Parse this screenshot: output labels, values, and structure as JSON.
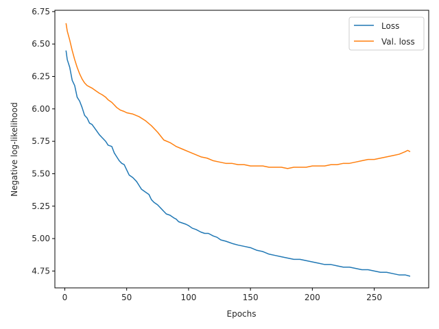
{
  "chart_data": {
    "type": "line",
    "title": "",
    "xlabel": "Epochs",
    "ylabel": "Negative log-likelihood",
    "xlim": [
      -8,
      294
    ],
    "ylim": [
      4.62,
      6.76
    ],
    "xticks": [
      0,
      50,
      100,
      150,
      200,
      250
    ],
    "yticks": [
      4.75,
      5.0,
      5.25,
      5.5,
      5.75,
      6.0,
      6.25,
      6.5,
      6.75
    ],
    "xtick_labels": [
      "0",
      "50",
      "100",
      "150",
      "200",
      "250"
    ],
    "ytick_labels": [
      "4.75",
      "5.00",
      "5.25",
      "5.50",
      "5.75",
      "6.00",
      "6.25",
      "6.50",
      "6.75"
    ],
    "grid": false,
    "legend": "top-right",
    "colors": {
      "Loss": "#1f77b4",
      "Val. loss": "#ff7f0e"
    },
    "series": [
      {
        "name": "Loss",
        "x": [
          1,
          2,
          4,
          6,
          8,
          10,
          12,
          14,
          16,
          18,
          20,
          22,
          25,
          28,
          30,
          33,
          35,
          38,
          40,
          42,
          44,
          46,
          48,
          50,
          52,
          55,
          58,
          60,
          62,
          65,
          68,
          70,
          72,
          75,
          78,
          80,
          82,
          85,
          88,
          90,
          92,
          95,
          98,
          100,
          103,
          106,
          110,
          113,
          116,
          120,
          123,
          126,
          130,
          133,
          136,
          140,
          145,
          150,
          155,
          160,
          165,
          170,
          175,
          180,
          185,
          190,
          195,
          200,
          205,
          210,
          215,
          220,
          225,
          230,
          235,
          240,
          245,
          250,
          255,
          260,
          265,
          270,
          275,
          279
        ],
        "y": [
          6.45,
          6.38,
          6.32,
          6.22,
          6.18,
          6.09,
          6.06,
          6.01,
          5.95,
          5.93,
          5.89,
          5.88,
          5.84,
          5.8,
          5.78,
          5.75,
          5.72,
          5.71,
          5.66,
          5.63,
          5.6,
          5.58,
          5.57,
          5.53,
          5.49,
          5.47,
          5.44,
          5.41,
          5.38,
          5.36,
          5.34,
          5.3,
          5.28,
          5.26,
          5.23,
          5.21,
          5.19,
          5.18,
          5.16,
          5.15,
          5.13,
          5.12,
          5.11,
          5.1,
          5.08,
          5.07,
          5.05,
          5.04,
          5.04,
          5.02,
          5.01,
          4.99,
          4.98,
          4.97,
          4.96,
          4.95,
          4.94,
          4.93,
          4.91,
          4.9,
          4.88,
          4.87,
          4.86,
          4.85,
          4.84,
          4.84,
          4.83,
          4.82,
          4.81,
          4.8,
          4.8,
          4.79,
          4.78,
          4.78,
          4.77,
          4.76,
          4.76,
          4.75,
          4.74,
          4.74,
          4.73,
          4.72,
          4.72,
          4.71
        ]
      },
      {
        "name": "Val. loss",
        "x": [
          1,
          2,
          4,
          6,
          8,
          10,
          12,
          14,
          16,
          18,
          20,
          22,
          25,
          28,
          30,
          33,
          35,
          38,
          40,
          42,
          45,
          48,
          50,
          55,
          60,
          65,
          70,
          75,
          80,
          85,
          90,
          95,
          100,
          105,
          110,
          115,
          120,
          125,
          130,
          135,
          140,
          145,
          150,
          155,
          160,
          165,
          170,
          175,
          180,
          185,
          190,
          195,
          200,
          205,
          210,
          215,
          220,
          225,
          230,
          235,
          240,
          245,
          250,
          255,
          260,
          265,
          270,
          275,
          277,
          279
        ],
        "y": [
          6.66,
          6.6,
          6.53,
          6.45,
          6.38,
          6.32,
          6.27,
          6.23,
          6.2,
          6.18,
          6.17,
          6.16,
          6.14,
          6.12,
          6.11,
          6.09,
          6.07,
          6.05,
          6.03,
          6.01,
          5.99,
          5.98,
          5.97,
          5.96,
          5.94,
          5.91,
          5.87,
          5.82,
          5.76,
          5.74,
          5.71,
          5.69,
          5.67,
          5.65,
          5.63,
          5.62,
          5.6,
          5.59,
          5.58,
          5.58,
          5.57,
          5.57,
          5.56,
          5.56,
          5.56,
          5.55,
          5.55,
          5.55,
          5.54,
          5.55,
          5.55,
          5.55,
          5.56,
          5.56,
          5.56,
          5.57,
          5.57,
          5.58,
          5.58,
          5.59,
          5.6,
          5.61,
          5.61,
          5.62,
          5.63,
          5.64,
          5.65,
          5.67,
          5.68,
          5.67
        ]
      }
    ]
  }
}
